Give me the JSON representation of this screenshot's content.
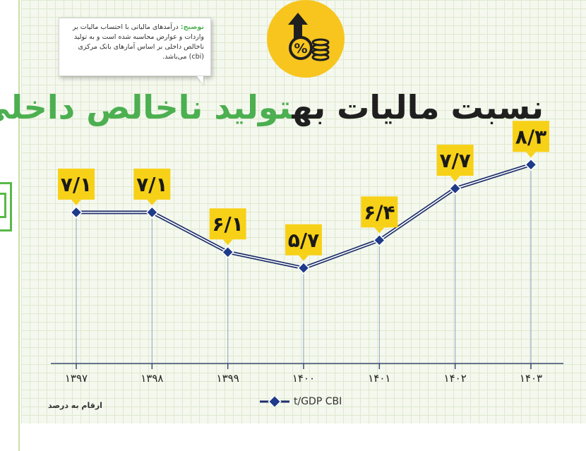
{
  "header": {
    "title_part1": "نسبت مالیات به",
    "title_part2": "تولید ناخالص داخلی"
  },
  "note": {
    "label": "توضیح:",
    "text": "درآمدهای مالیاتی با احتساب مالیات بر واردات و عوارض محاسبه شده است و به تولید ناخالص داخلی بر اساس آمارهای بانک مرکزی (cbi) می‌باشد."
  },
  "badge": {
    "icons": [
      "arrow-up-icon",
      "percent-icon",
      "coin-stack-icon"
    ]
  },
  "colors": {
    "label_box": "#f7d117",
    "line": "#1e2f6b",
    "marker_fill": "#1e3a8a",
    "badge_bg": "#f7c51e",
    "title_green": "#4caf50",
    "title_dark": "#1f1f1f"
  },
  "footer": {
    "units_note": "ارقام به درصد"
  },
  "chart_data": {
    "type": "line",
    "categories": [
      "۱۳۹۷",
      "۱۳۹۸",
      "۱۳۹۹",
      "۱۴۰۰",
      "۱۴۰۱",
      "۱۴۰۲",
      "۱۴۰۳"
    ],
    "value_labels": [
      "۷/۱",
      "۷/۱",
      "۶/۱",
      "۵/۷",
      "۶/۴",
      "۷/۷",
      "۸/۳"
    ],
    "series": [
      {
        "name": "t/GDP CBI",
        "values": [
          7.1,
          7.1,
          6.1,
          5.7,
          6.4,
          7.7,
          8.3
        ]
      }
    ],
    "ylim": [
      3.3,
      9.6
    ],
    "grid": true,
    "legend": "bottom-center",
    "xlabel": "",
    "ylabel": ""
  }
}
